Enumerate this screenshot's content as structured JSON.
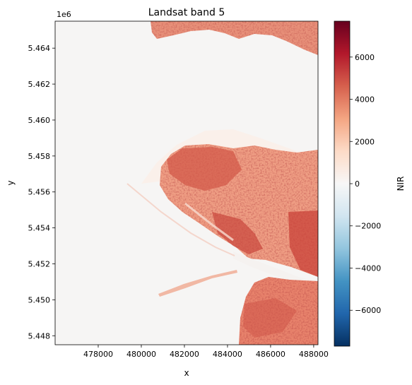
{
  "chart_data": {
    "type": "heatmap",
    "title": "Landsat band 5",
    "xlabel": "x",
    "ylabel": "y",
    "y_offset_label": "1e6",
    "xlim": [
      476000,
      488200
    ],
    "ylim": [
      5.4475,
      5.4655
    ],
    "x_ticks": [
      478000,
      480000,
      482000,
      484000,
      486000,
      488000
    ],
    "x_tick_labels": [
      "478000",
      "480000",
      "482000",
      "484000",
      "486000",
      "488000"
    ],
    "y_ticks": [
      5.448,
      5.45,
      5.452,
      5.454,
      5.456,
      5.458,
      5.46,
      5.462,
      5.464
    ],
    "y_tick_labels": [
      "5.448",
      "5.450",
      "5.452",
      "5.454",
      "5.456",
      "5.458",
      "5.460",
      "5.462",
      "5.464"
    ],
    "grid": false,
    "colormap": "RdBu_r",
    "colorbar": {
      "label": "NIR",
      "range": [
        -7700,
        7700
      ],
      "ticks": [
        -6000,
        -4000,
        -2000,
        0,
        2000,
        4000,
        6000
      ],
      "tick_labels": [
        "−6000",
        "−4000",
        "−2000",
        "0",
        "2000",
        "4000",
        "6000"
      ],
      "colors": [
        "#053061",
        "#2166ac",
        "#4393c3",
        "#92c5de",
        "#d1e5f0",
        "#f7f7f7",
        "#fddbc7",
        "#f4a582",
        "#d6604d",
        "#b2182b",
        "#67001f"
      ]
    },
    "value_summary": {
      "water": 100,
      "land_low": 1500,
      "land_mid": 3000,
      "land_high": 5000
    }
  }
}
